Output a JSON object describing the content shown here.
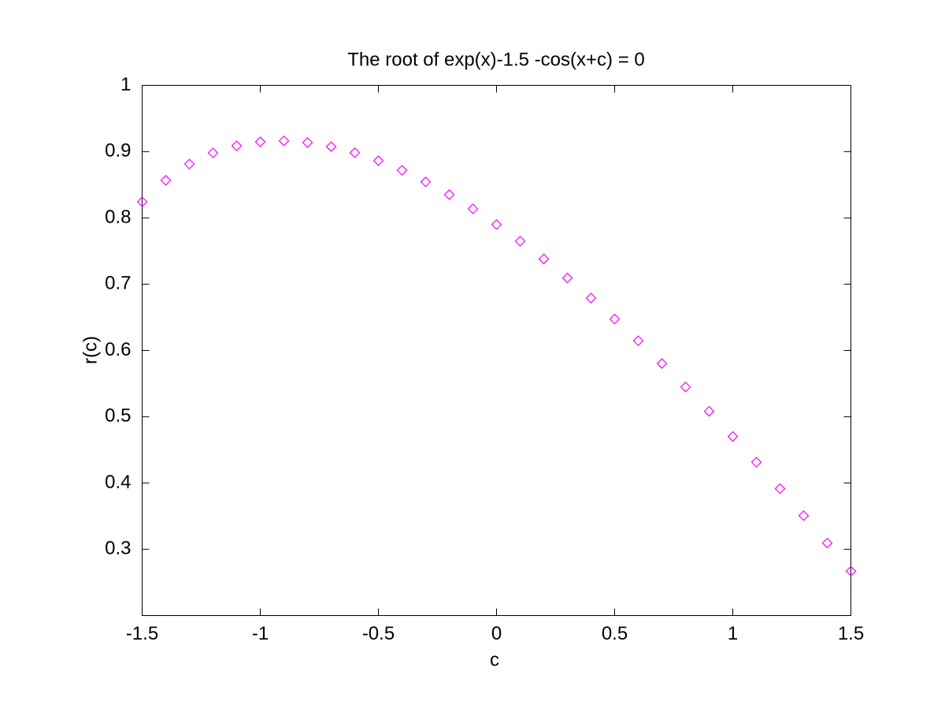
{
  "chart_data": {
    "type": "scatter",
    "title": "The root of exp(x)-1.5 -cos(x+c) = 0",
    "x_label": "c",
    "y_label": "r(c)",
    "x": [
      -1.5,
      -1.4,
      -1.3,
      -1.2,
      -1.1,
      -1.0,
      -0.9,
      -0.8,
      -0.7,
      -0.6,
      -0.5,
      -0.4,
      -0.3,
      -0.2,
      -0.1,
      0,
      0.1,
      0.2,
      0.3,
      0.4,
      0.5,
      0.6,
      0.7,
      0.8,
      0.9,
      1.0,
      1.1,
      1.2,
      1.3,
      1.4,
      1.5
    ],
    "values": [
      0.8243,
      0.8568,
      0.8813,
      0.898,
      0.9087,
      0.9148,
      0.9162,
      0.9138,
      0.9076,
      0.8984,
      0.8863,
      0.8719,
      0.8544,
      0.8351,
      0.8138,
      0.79,
      0.765,
      0.738,
      0.7094,
      0.679,
      0.6475,
      0.6147,
      0.5803,
      0.5448,
      0.5082,
      0.4702,
      0.4314,
      0.3915,
      0.3508,
      0.3094,
      0.267
    ],
    "color": "#ff00ff",
    "marker": "diamond",
    "xlim": [
      -1.5,
      1.5
    ],
    "xticks": [
      -1.5,
      -1,
      -0.5,
      0,
      0.5,
      1,
      1.5
    ],
    "ylim": [
      0.2,
      1
    ],
    "yticks": [
      0.3,
      0.4,
      0.5,
      0.6,
      0.7,
      0.8,
      0.9,
      1
    ],
    "grid": false
  }
}
